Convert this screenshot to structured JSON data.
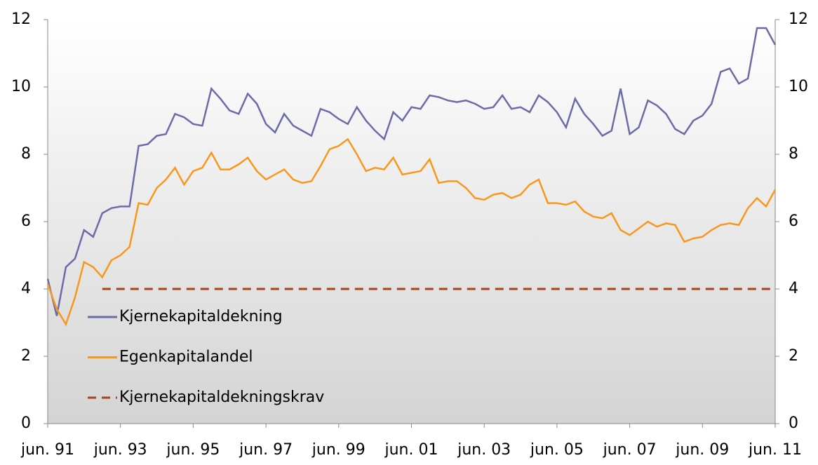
{
  "chart_data": {
    "type": "line",
    "categories": [
      "jun. 91",
      null,
      null,
      null,
      null,
      null,
      null,
      null,
      "jun. 93",
      null,
      null,
      null,
      null,
      null,
      null,
      null,
      "jun. 95",
      null,
      null,
      null,
      null,
      null,
      null,
      null,
      "jun. 97",
      null,
      null,
      null,
      null,
      null,
      null,
      null,
      "jun. 99",
      null,
      null,
      null,
      null,
      null,
      null,
      null,
      "jun. 01",
      null,
      null,
      null,
      null,
      null,
      null,
      null,
      "jun. 03",
      null,
      null,
      null,
      null,
      null,
      null,
      null,
      "jun. 05",
      null,
      null,
      null,
      null,
      null,
      null,
      null,
      "jun. 07",
      null,
      null,
      null,
      null,
      null,
      null,
      null,
      "jun. 09",
      null,
      null,
      null,
      null,
      null,
      null,
      null,
      "jun. 11"
    ],
    "series": [
      {
        "name": "Kjernekapitaldekning",
        "color": "#6b6ca6",
        "style": "solid",
        "values": [
          4.3,
          3.2,
          4.65,
          4.9,
          5.75,
          5.55,
          6.25,
          6.4,
          6.45,
          6.45,
          8.25,
          8.3,
          8.55,
          8.6,
          9.2,
          9.1,
          8.9,
          8.85,
          9.95,
          9.65,
          9.3,
          9.2,
          9.8,
          9.5,
          8.9,
          8.65,
          9.2,
          8.85,
          8.7,
          8.55,
          9.35,
          9.25,
          9.05,
          8.9,
          9.4,
          9.0,
          8.7,
          8.45,
          9.25,
          9.0,
          9.4,
          9.35,
          9.75,
          9.7,
          9.6,
          9.55,
          9.6,
          9.5,
          9.35,
          9.4,
          9.75,
          9.35,
          9.4,
          9.25,
          9.75,
          9.55,
          9.25,
          8.8,
          9.65,
          9.2,
          8.9,
          8.55,
          8.7,
          9.95,
          8.6,
          8.8,
          9.6,
          9.45,
          9.2,
          8.75,
          8.6,
          9.0,
          9.15,
          9.5,
          10.45,
          10.55,
          10.1,
          10.25,
          11.75,
          11.75,
          11.25
        ]
      },
      {
        "name": "Egenkapitalandel",
        "color": "#f7981d",
        "style": "solid",
        "values": [
          4.15,
          3.4,
          2.95,
          3.75,
          4.8,
          4.65,
          4.35,
          4.85,
          5.0,
          5.25,
          6.55,
          6.5,
          7.0,
          7.25,
          7.6,
          7.1,
          7.5,
          7.6,
          8.05,
          7.55,
          7.55,
          7.7,
          7.9,
          7.5,
          7.25,
          7.4,
          7.55,
          7.25,
          7.15,
          7.2,
          7.65,
          8.15,
          8.25,
          8.45,
          8.0,
          7.5,
          7.6,
          7.55,
          7.9,
          7.4,
          7.45,
          7.5,
          7.85,
          7.15,
          7.2,
          7.2,
          7.0,
          6.7,
          6.65,
          6.8,
          6.85,
          6.7,
          6.8,
          7.1,
          7.25,
          6.55,
          6.55,
          6.5,
          6.6,
          6.3,
          6.15,
          6.1,
          6.25,
          5.75,
          5.6,
          5.8,
          6.0,
          5.85,
          5.95,
          5.9,
          5.4,
          5.5,
          5.55,
          5.75,
          5.9,
          5.95,
          5.9,
          6.4,
          6.7,
          6.45,
          6.95
        ]
      },
      {
        "name": "Kjernekapitaldekningskrav",
        "color": "#a6421c",
        "style": "dashed",
        "values": [
          null,
          null,
          null,
          null,
          null,
          null,
          4,
          4,
          4,
          4,
          4,
          4,
          4,
          4,
          4,
          4,
          4,
          4,
          4,
          4,
          4,
          4,
          4,
          4,
          4,
          4,
          4,
          4,
          4,
          4,
          4,
          4,
          4,
          4,
          4,
          4,
          4,
          4,
          4,
          4,
          4,
          4,
          4,
          4,
          4,
          4,
          4,
          4,
          4,
          4,
          4,
          4,
          4,
          4,
          4,
          4,
          4,
          4,
          4,
          4,
          4,
          4,
          4,
          4,
          4,
          4,
          4,
          4,
          4,
          4,
          4,
          4,
          4,
          4,
          4,
          4,
          4,
          4,
          4,
          4,
          4
        ]
      }
    ],
    "ylim": [
      0,
      12
    ],
    "yticks": [
      0,
      2,
      4,
      6,
      8,
      10,
      12
    ],
    "y2lim": [
      0,
      12
    ],
    "y2ticks": [
      0,
      2,
      4,
      6,
      8,
      10,
      12
    ],
    "grid": false,
    "legend": "inside-left"
  }
}
